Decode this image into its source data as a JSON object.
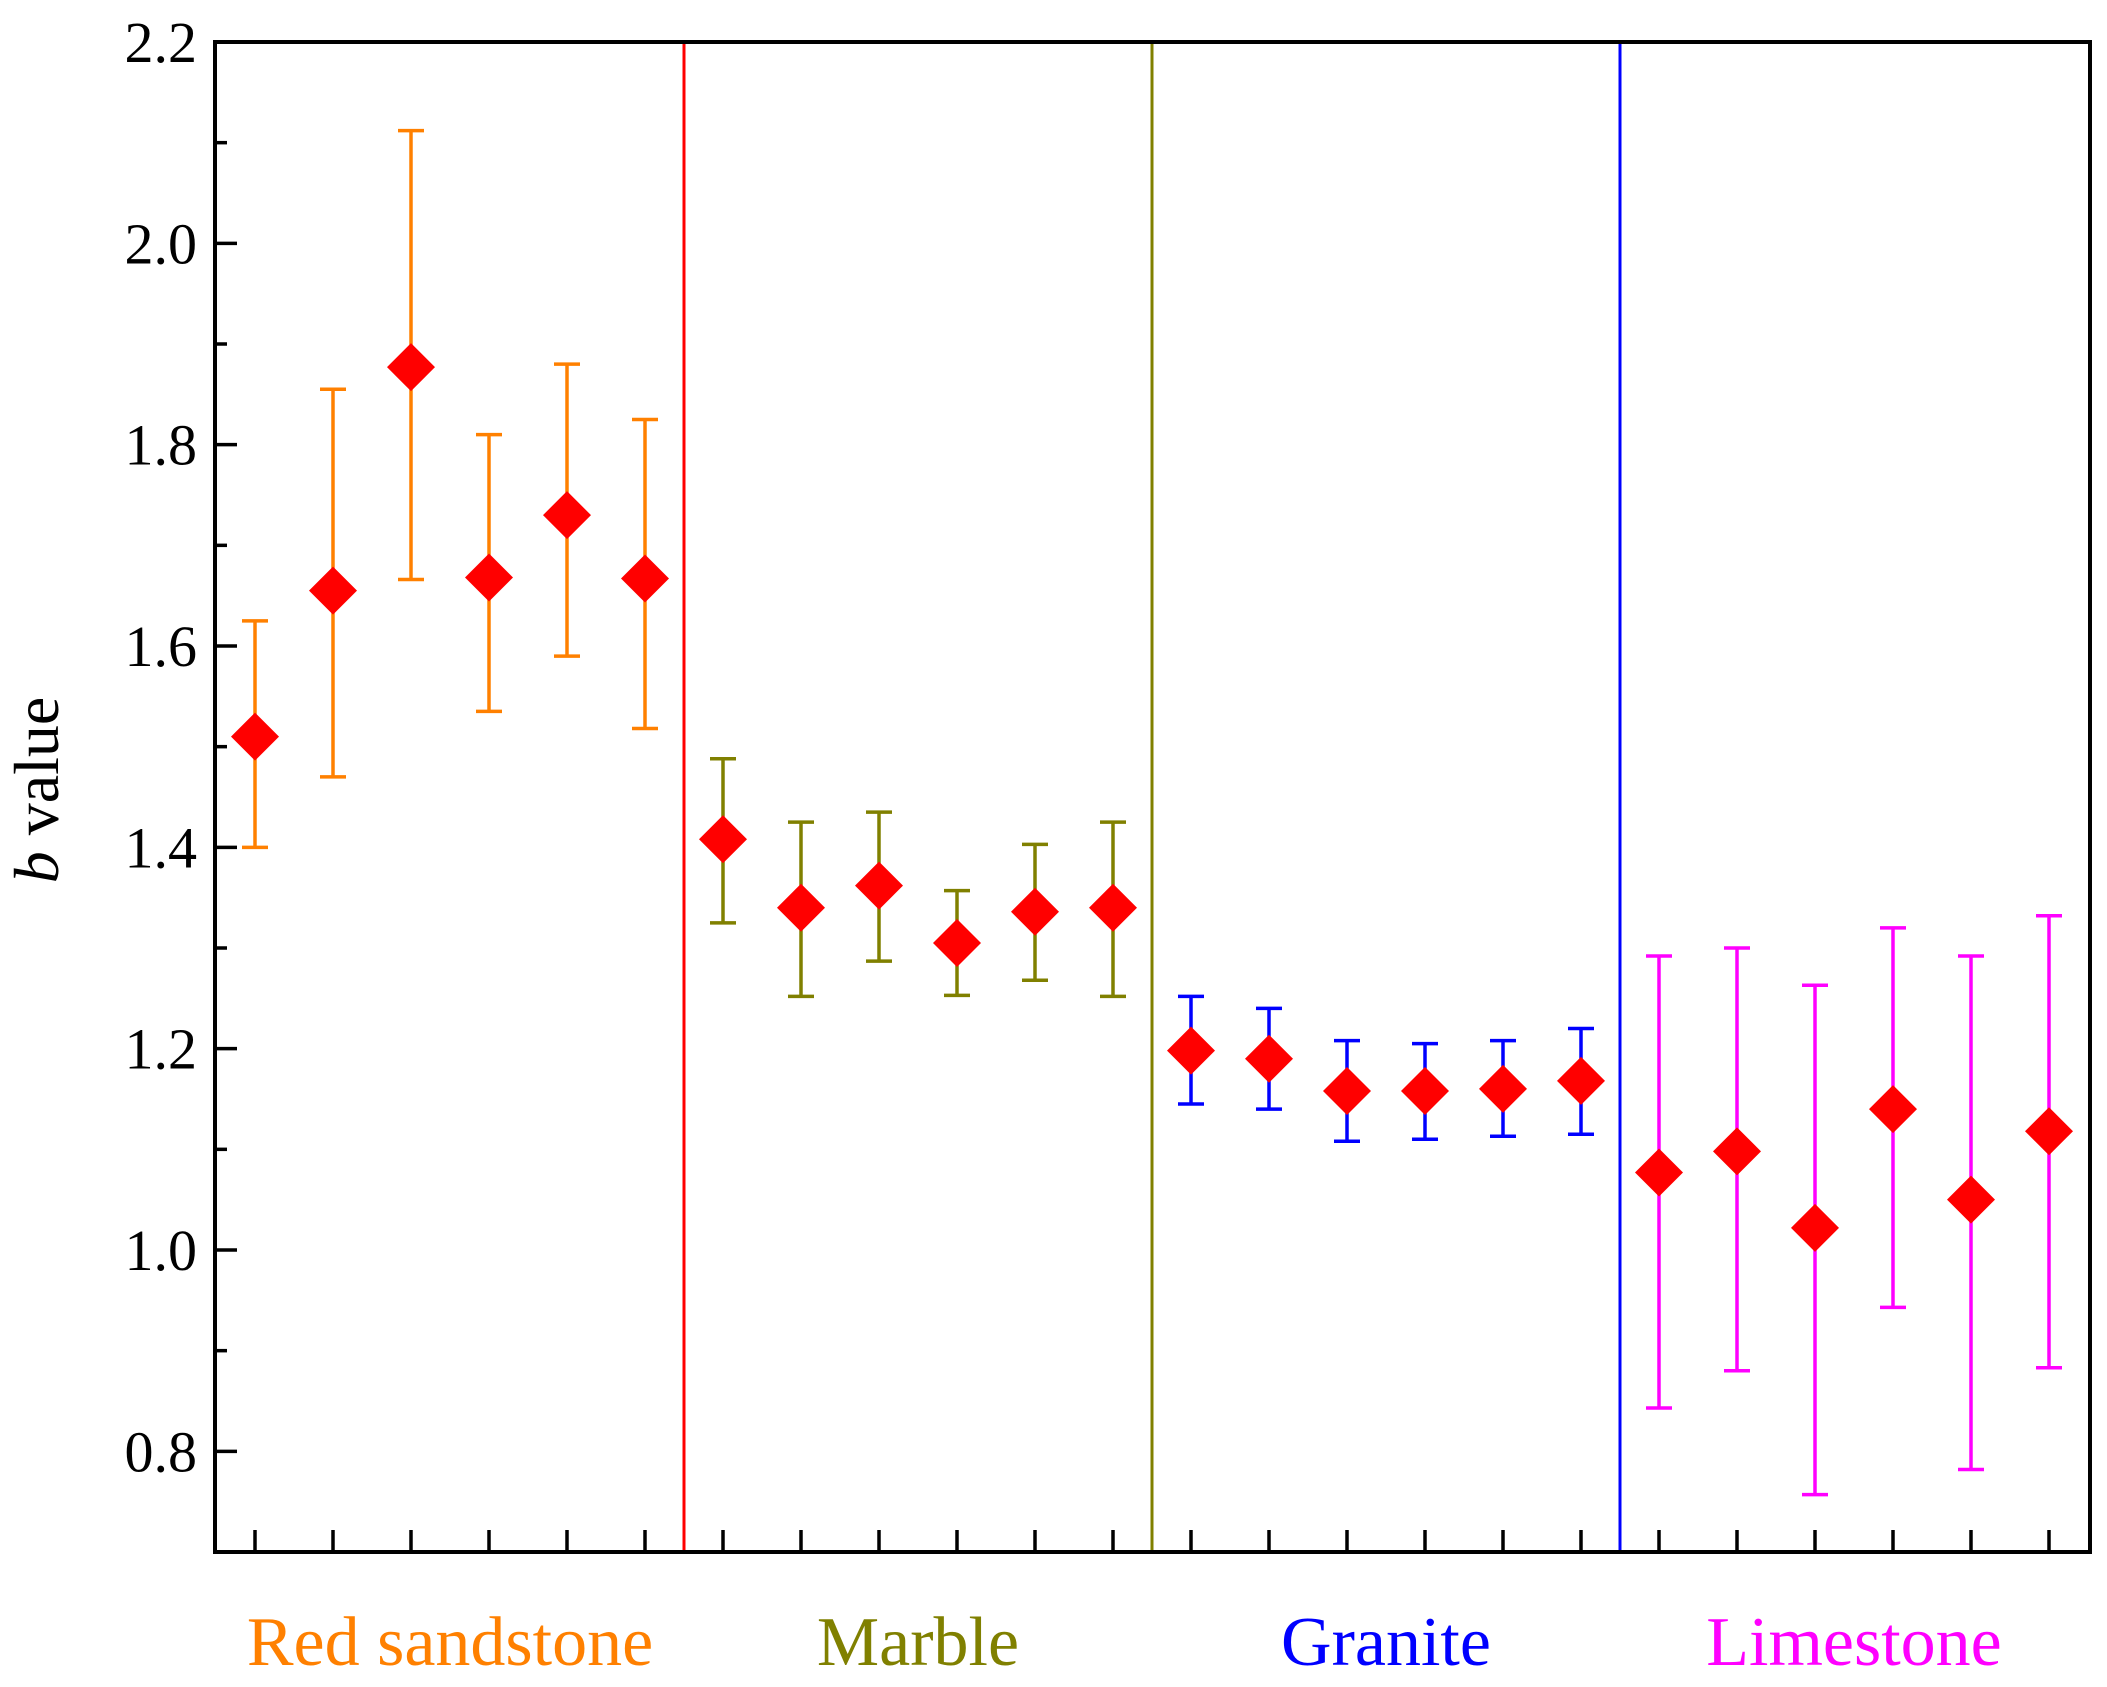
{
  "chart_data": {
    "type": "scatter",
    "ylabel_italic": "b",
    "ylabel_rest": " value",
    "ylim": [
      0.7,
      2.2
    ],
    "yticks": [
      "0.8",
      "1.0",
      "1.2",
      "1.4",
      "1.6",
      "1.8",
      "2.0",
      "2.2"
    ],
    "marker_color": "#ff0000",
    "groups": [
      {
        "name": "Red sandstone",
        "color": "#ff8000",
        "points": [
          {
            "value": 1.51,
            "upper": 1.625,
            "lower": 1.4
          },
          {
            "value": 1.655,
            "upper": 1.855,
            "lower": 1.47
          },
          {
            "value": 1.877,
            "upper": 2.112,
            "lower": 1.666
          },
          {
            "value": 1.668,
            "upper": 1.81,
            "lower": 1.535
          },
          {
            "value": 1.73,
            "upper": 1.88,
            "lower": 1.59
          },
          {
            "value": 1.667,
            "upper": 1.825,
            "lower": 1.518
          }
        ]
      },
      {
        "name": "Marble",
        "color": "#808000",
        "divider_color": "#ff0000",
        "points": [
          {
            "value": 1.408,
            "upper": 1.488,
            "lower": 1.325
          },
          {
            "value": 1.34,
            "upper": 1.425,
            "lower": 1.252
          },
          {
            "value": 1.362,
            "upper": 1.435,
            "lower": 1.287
          },
          {
            "value": 1.305,
            "upper": 1.357,
            "lower": 1.253
          },
          {
            "value": 1.336,
            "upper": 1.403,
            "lower": 1.268
          },
          {
            "value": 1.34,
            "upper": 1.425,
            "lower": 1.252
          }
        ]
      },
      {
        "name": "Granite",
        "color": "#0000ff",
        "divider_color": "#808000",
        "points": [
          {
            "value": 1.198,
            "upper": 1.252,
            "lower": 1.145
          },
          {
            "value": 1.19,
            "upper": 1.24,
            "lower": 1.14
          },
          {
            "value": 1.158,
            "upper": 1.208,
            "lower": 1.108
          },
          {
            "value": 1.158,
            "upper": 1.205,
            "lower": 1.11
          },
          {
            "value": 1.16,
            "upper": 1.208,
            "lower": 1.113
          },
          {
            "value": 1.168,
            "upper": 1.22,
            "lower": 1.115
          }
        ]
      },
      {
        "name": "Limestone",
        "color": "#ff00ff",
        "divider_color": "#0000ff",
        "points": [
          {
            "value": 1.077,
            "upper": 1.292,
            "lower": 0.843
          },
          {
            "value": 1.098,
            "upper": 1.3,
            "lower": 0.88
          },
          {
            "value": 1.022,
            "upper": 1.263,
            "lower": 0.757
          },
          {
            "value": 1.14,
            "upper": 1.32,
            "lower": 0.943
          },
          {
            "value": 1.05,
            "upper": 1.292,
            "lower": 0.782
          },
          {
            "value": 1.118,
            "upper": 1.332,
            "lower": 0.883
          }
        ]
      }
    ]
  }
}
